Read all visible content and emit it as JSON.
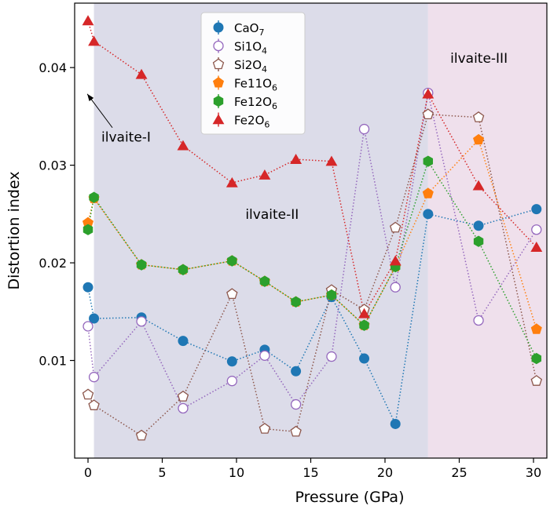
{
  "chart_data": {
    "type": "scatter",
    "xlabel": "Pressure (GPa)",
    "ylabel": "Distortion index",
    "xlim": [
      -0.9,
      30.9
    ],
    "ylim": [
      0.0,
      0.0466
    ],
    "xticks": [
      0,
      5,
      10,
      15,
      20,
      25,
      30
    ],
    "yticks": [
      0.01,
      0.02,
      0.03,
      0.04
    ],
    "xtick_labels": [
      "0",
      "5",
      "10",
      "15",
      "20",
      "25",
      "30"
    ],
    "ytick_labels": [
      "0.01",
      "0.02",
      "0.03",
      "0.04"
    ],
    "regions": [
      {
        "x0": 0.4,
        "x1": 22.9,
        "color": "#dcdce9"
      },
      {
        "x0": 22.9,
        "x1": 30.9,
        "color": "#efe0ec"
      }
    ],
    "annotations": [
      {
        "text": "ilvaite-I",
        "x": 0.9,
        "y": 0.0324,
        "arrow_to": [
          -0.05,
          0.0373
        ]
      },
      {
        "text": "ilvaite-II",
        "x": 10.6,
        "y": 0.0245
      },
      {
        "text": "ilvaite-III",
        "x": 24.4,
        "y": 0.0405
      }
    ],
    "legend": {
      "position": "upper-center"
    },
    "series": [
      {
        "name": "CaO7",
        "label_main": "CaO",
        "label_sub": "7",
        "marker": "circle",
        "filled": true,
        "color": "#1f77b4",
        "x": [
          0,
          0.4,
          3.6,
          6.4,
          9.7,
          11.9,
          14,
          16.4,
          18.6,
          20.7,
          22.9,
          26.3,
          30.2
        ],
        "y": [
          0.0175,
          0.0143,
          0.0144,
          0.012,
          0.0099,
          0.0111,
          0.0089,
          0.0165,
          0.0102,
          0.0035,
          0.025,
          0.0238,
          0.0255
        ]
      },
      {
        "name": "Si1O4",
        "label_main": "Si1O",
        "label_sub": "4",
        "marker": "circle",
        "filled": false,
        "color": "#9467bd",
        "x": [
          0,
          0.4,
          3.6,
          6.4,
          9.7,
          11.9,
          14,
          16.4,
          18.6,
          20.7,
          22.9,
          26.3,
          30.2
        ],
        "y": [
          0.0135,
          0.0083,
          0.014,
          0.0051,
          0.0079,
          0.0105,
          0.0055,
          0.0104,
          0.0337,
          0.0175,
          0.0374,
          0.0141,
          0.0234
        ]
      },
      {
        "name": "Si2O4",
        "label_main": "Si2O",
        "label_sub": "4",
        "marker": "pentagon",
        "filled": false,
        "color": "#8c564b",
        "x": [
          0,
          0.4,
          3.6,
          6.4,
          9.7,
          11.9,
          14,
          16.4,
          18.6,
          20.7,
          22.9,
          26.3,
          30.2
        ],
        "y": [
          0.0065,
          0.0054,
          0.0023,
          0.0063,
          0.0168,
          0.003,
          0.0027,
          0.0172,
          0.0152,
          0.0236,
          0.0352,
          0.0349,
          0.0079
        ]
      },
      {
        "name": "Fe11O6",
        "label_main": "Fe11O",
        "label_sub": "6",
        "marker": "pentagon",
        "filled": true,
        "color": "#ff7f0e",
        "x": [
          0,
          0.4,
          3.6,
          6.4,
          9.7,
          11.9,
          14,
          16.4,
          18.6,
          20.7,
          22.9,
          26.3,
          30.2
        ],
        "y": [
          0.0241,
          0.0266,
          0.0198,
          0.0193,
          0.0202,
          0.0181,
          0.016,
          0.0167,
          0.0136,
          0.0196,
          0.0271,
          0.0326,
          0.0132
        ]
      },
      {
        "name": "Fe12O6",
        "label_main": "Fe12O",
        "label_sub": "6",
        "marker": "hexagon",
        "filled": true,
        "color": "#2ca02c",
        "x": [
          0,
          0.4,
          3.6,
          6.4,
          9.7,
          11.9,
          14,
          16.4,
          18.6,
          20.7,
          22.9,
          26.3,
          30.2
        ],
        "y": [
          0.0234,
          0.0267,
          0.0198,
          0.0193,
          0.0202,
          0.0181,
          0.016,
          0.0167,
          0.0136,
          0.0196,
          0.0304,
          0.0222,
          0.0102
        ]
      },
      {
        "name": "Fe2O6",
        "label_main": "Fe2O",
        "label_sub": "6",
        "marker": "triangle",
        "filled": true,
        "color": "#d62728",
        "x": [
          0,
          0.4,
          3.6,
          6.4,
          9.7,
          11.9,
          14,
          16.4,
          18.6,
          20.7,
          22.9,
          26.3,
          30.2
        ],
        "y": [
          0.0448,
          0.0427,
          0.0393,
          0.032,
          0.0282,
          0.029,
          0.0306,
          0.0304,
          0.0148,
          0.0202,
          0.0373,
          0.0279,
          0.0216
        ]
      }
    ]
  }
}
